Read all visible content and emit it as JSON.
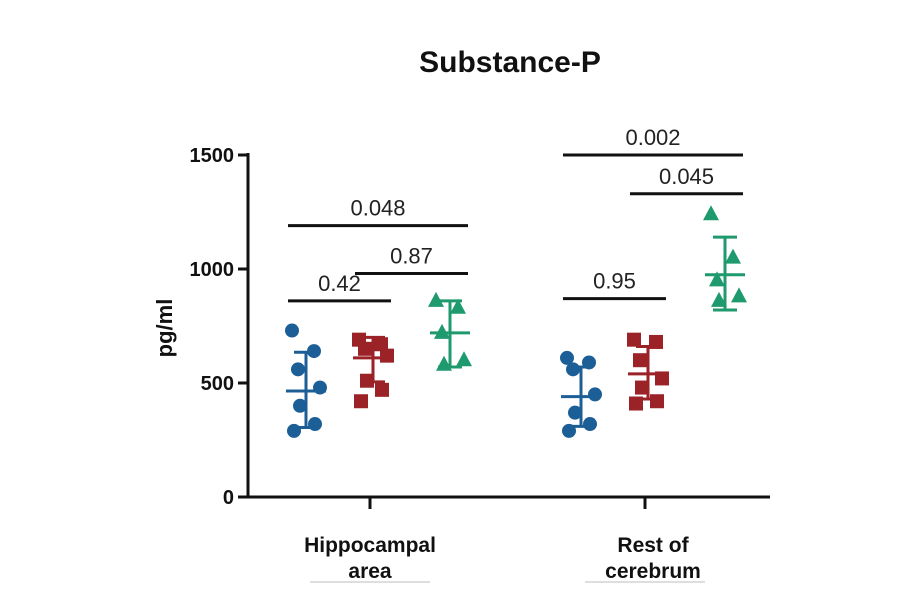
{
  "chart_data": {
    "type": "scatter",
    "title": "Substance-P",
    "ylabel": "pg/ml",
    "xlabel": "",
    "ylim": [
      0,
      1500
    ],
    "yticks": [
      0,
      500,
      1000,
      1500
    ],
    "categories": [
      {
        "lines": [
          "Hippocampal",
          "area"
        ]
      },
      {
        "lines": [
          "Rest of",
          "cerebrum"
        ]
      }
    ],
    "colors": {
      "blue": "#1c5e96",
      "red": "#9b2226",
      "green": "#1f9a6e"
    },
    "groups": [
      {
        "category": 0,
        "series": [
          {
            "marker": "circle",
            "color": "#1c5e96",
            "mean": 465,
            "sd_low": 305,
            "sd_high": 635,
            "points": [
              730,
              640,
              560,
              480,
              400,
              320,
              290
            ]
          },
          {
            "marker": "square",
            "color": "#9b2226",
            "mean": 610,
            "sd_low": 505,
            "sd_high": 700,
            "points": [
              690,
              670,
              650,
              620,
              510,
              470,
              420
            ]
          },
          {
            "marker": "triangle",
            "color": "#1f9a6e",
            "mean": 720,
            "sd_low": 570,
            "sd_high": 860,
            "points": [
              860,
              830,
              720,
              600,
              580
            ]
          }
        ]
      },
      {
        "category": 1,
        "series": [
          {
            "marker": "circle",
            "color": "#1c5e96",
            "mean": 440,
            "sd_low": 310,
            "sd_high": 570,
            "points": [
              610,
              590,
              560,
              450,
              370,
              320,
              290
            ]
          },
          {
            "marker": "square",
            "color": "#9b2226",
            "mean": 540,
            "sd_low": 430,
            "sd_high": 660,
            "points": [
              690,
              680,
              600,
              520,
              480,
              420,
              410
            ]
          },
          {
            "marker": "triangle",
            "color": "#1f9a6e",
            "mean": 975,
            "sd_low": 820,
            "sd_high": 1140,
            "points": [
              1240,
              1050,
              950,
              880,
              860
            ]
          }
        ]
      }
    ],
    "comparisons": [
      {
        "label": "0.048",
        "category": 0,
        "from": 0,
        "to": 2,
        "y": 1190
      },
      {
        "label": "0.42",
        "category": 0,
        "from": 0,
        "to": 1,
        "y": 860
      },
      {
        "label": "0.87",
        "category": 0,
        "from": 1,
        "to": 2,
        "y": 980
      },
      {
        "label": "0.002",
        "category": 1,
        "from": 0,
        "to": 2,
        "y": 1500
      },
      {
        "label": "0.045",
        "category": 1,
        "from": 1,
        "to": 2,
        "y": 1330
      },
      {
        "label": "0.95",
        "category": 1,
        "from": 0,
        "to": 1,
        "y": 870
      }
    ]
  }
}
